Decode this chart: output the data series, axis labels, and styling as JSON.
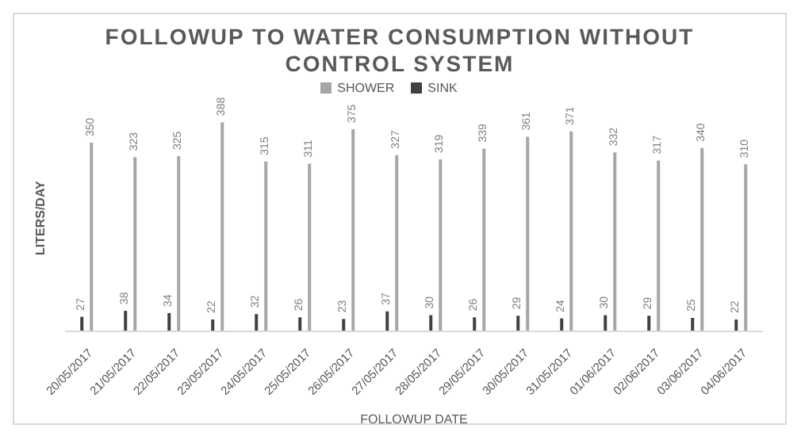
{
  "chart_data": {
    "type": "bar",
    "title": "FOLLOWUP TO WATER CONSUMPTION WITHOUT CONTROL SYSTEM",
    "xlabel": "FOLLOWUP DATE",
    "ylabel": "LITERS/DAY",
    "categories": [
      "20/05/2017",
      "21/05/2017",
      "22/05/2017",
      "23/05/2017",
      "24/05/2017",
      "25/05/2017",
      "26/05/2017",
      "27/05/2017",
      "28/05/2017",
      "29/05/2017",
      "30/05/2017",
      "31/05/2017",
      "01/06/2017",
      "02/06/2017",
      "03/06/2017",
      "04/06/2017"
    ],
    "series": [
      {
        "name": "SINK",
        "color": "#404040",
        "values": [
          27,
          38,
          34,
          22,
          32,
          26,
          23,
          37,
          30,
          26,
          29,
          24,
          30,
          29,
          25,
          22
        ]
      },
      {
        "name": "SHOWER",
        "color": "#a6a6a6",
        "values": [
          350,
          323,
          325,
          388,
          315,
          311,
          375,
          327,
          319,
          339,
          361,
          371,
          332,
          317,
          340,
          310
        ]
      }
    ],
    "data_labels": true,
    "legend": "top",
    "grid": false
  }
}
